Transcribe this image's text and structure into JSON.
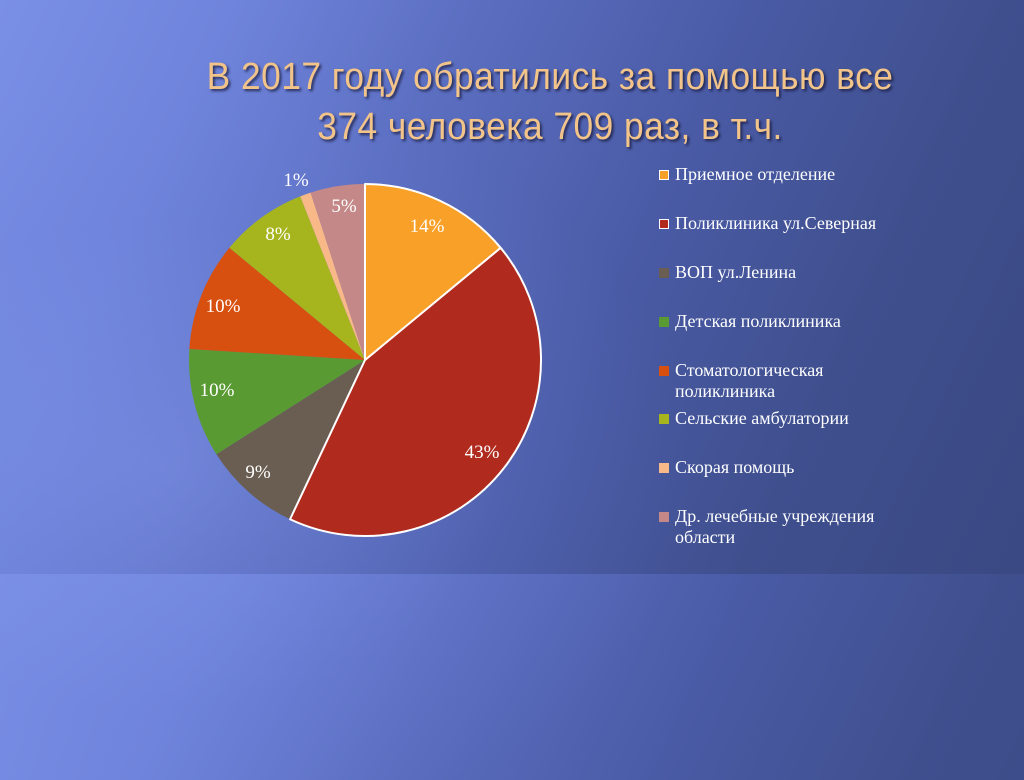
{
  "slide": {
    "title_line1": "В 2017 году обратились за помощью все",
    "title_line2": "374 человека 709 раз, в т.ч."
  },
  "legend": [
    {
      "label": "Приемное отделение",
      "color": "#f8a028"
    },
    {
      "label": "Поликлиника ул.Северная",
      "color": "#b02a1e"
    },
    {
      "label": "ВОП ул.Ленина",
      "color": "#6a5e52"
    },
    {
      "label": "Детская поликлиника",
      "color": "#5a9a32"
    },
    {
      "label": "Стоматологическая поликлиника",
      "color": "#d85010"
    },
    {
      "label": "Сельские амбулатории",
      "color": "#a6b51e"
    },
    {
      "label": "Скорая помощь",
      "color": "#f8b888"
    },
    {
      "label": "Др. лечебные учреждения области",
      "color": "#c48888"
    }
  ],
  "chart_data": {
    "type": "pie",
    "title": "В 2017 году обратились за помощью все 374 человека 709 раз, в т.ч.",
    "categories": [
      "Приемное отделение",
      "Поликлиника ул.Северная",
      "ВОП ул.Ленина",
      "Детская поликлиника",
      "Стоматологическая поликлиника",
      "Сельские амбулатории",
      "Скорая помощь",
      "Др. лечебные учреждения области"
    ],
    "values": [
      14,
      43,
      9,
      10,
      10,
      8,
      1,
      5
    ],
    "data_labels": [
      "14%",
      "43%",
      "9%",
      "10%",
      "10%",
      "8%",
      "1%",
      "5%"
    ],
    "colors": [
      "#f8a028",
      "#b02a1e",
      "#6a5e52",
      "#5a9a32",
      "#d85010",
      "#a6b51e",
      "#f8b888",
      "#c48888"
    ],
    "start_angle": "12 o'clock, clockwise",
    "legend_position": "right"
  }
}
